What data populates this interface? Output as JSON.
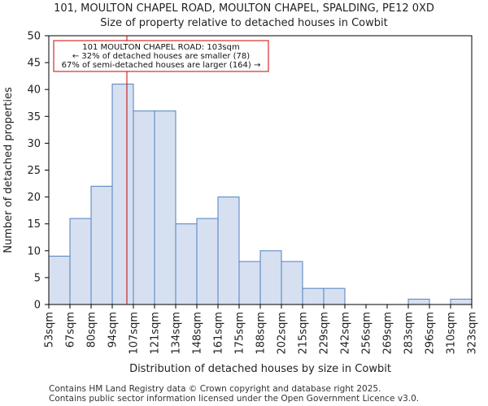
{
  "header": {
    "title": "101, MOULTON CHAPEL ROAD, MOULTON CHAPEL, SPALDING, PE12 0XD",
    "subtitle": "Size of property relative to detached houses in Cowbit"
  },
  "chart_data": {
    "type": "bar",
    "title": "101, MOULTON CHAPEL ROAD, MOULTON CHAPEL, SPALDING, PE12 0XD",
    "subtitle": "Size of property relative to detached houses in Cowbit",
    "xlabel": "Distribution of detached houses by size in Cowbit",
    "ylabel": "Number of detached properties",
    "bin_edges": [
      53,
      67,
      80,
      94,
      107,
      121,
      134,
      148,
      161,
      175,
      188,
      202,
      215,
      229,
      242,
      256,
      269,
      283,
      296,
      310,
      323
    ],
    "tick_labels": [
      "53sqm",
      "67sqm",
      "80sqm",
      "94sqm",
      "107sqm",
      "121sqm",
      "134sqm",
      "148sqm",
      "161sqm",
      "175sqm",
      "188sqm",
      "202sqm",
      "215sqm",
      "229sqm",
      "242sqm",
      "256sqm",
      "269sqm",
      "283sqm",
      "296sqm",
      "310sqm",
      "323sqm"
    ],
    "values": [
      9,
      16,
      22,
      41,
      36,
      36,
      15,
      16,
      20,
      8,
      10,
      8,
      3,
      3,
      0,
      0,
      0,
      1,
      0,
      1
    ],
    "ylim": [
      0,
      50
    ],
    "yticks": [
      0,
      5,
      10,
      15,
      20,
      25,
      30,
      35,
      40,
      45,
      50
    ],
    "marker": {
      "value": 103,
      "color": "#cc0000",
      "label_lines": [
        "101 MOULTON CHAPEL ROAD: 103sqm",
        "← 32% of detached houses are smaller (78)",
        "67% of semi-detached houses are larger (164) →"
      ]
    },
    "bar_fill": "#d6e0f1",
    "bar_edge": "#4f81bd",
    "grid": false
  },
  "footer": {
    "line1": "Contains HM Land Registry data © Crown copyright and database right 2025.",
    "line2": "Contains public sector information licensed under the Open Government Licence v3.0."
  }
}
